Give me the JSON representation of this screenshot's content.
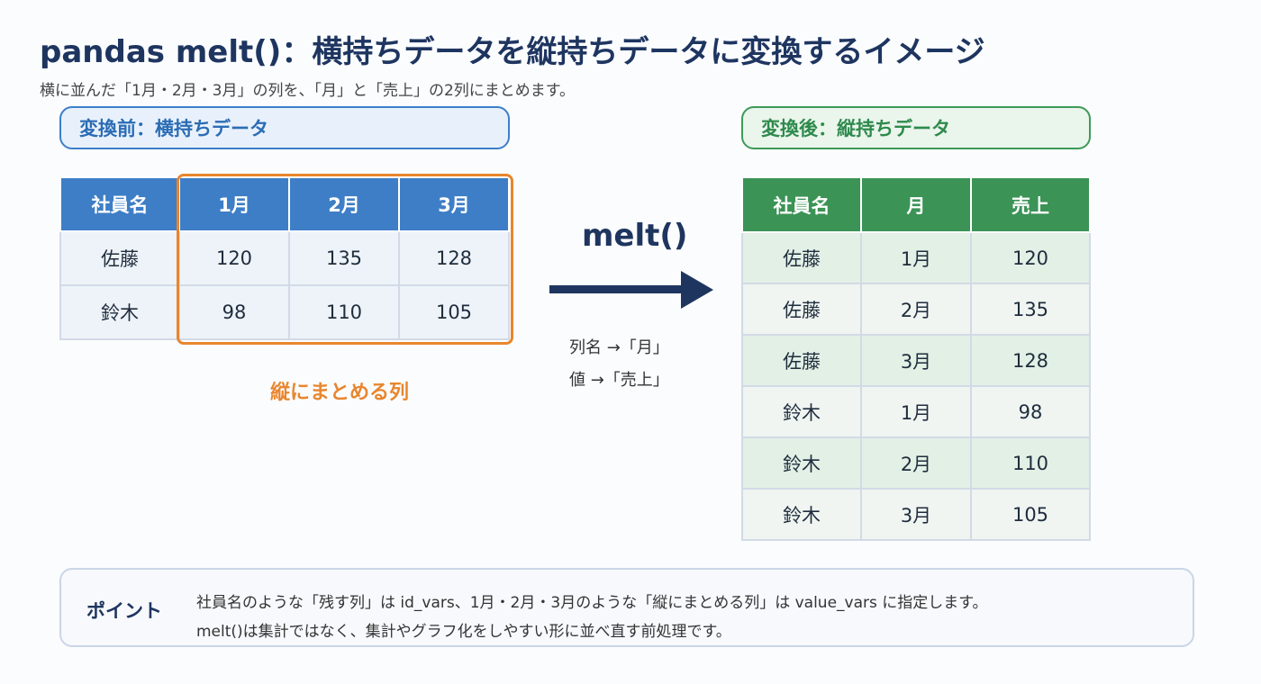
{
  "header": {
    "title": "pandas melt()：横持ちデータを縦持ちデータに変換するイメージ",
    "subtitle": "横に並んだ「1月・2月・3月」の列を、「月」と「売上」の2列にまとめます。"
  },
  "before": {
    "label": "変換前：横持ちデータ",
    "headers": [
      "社員名",
      "1月",
      "2月",
      "3月"
    ],
    "rows": [
      [
        "佐藤",
        "120",
        "135",
        "128"
      ],
      [
        "鈴木",
        "98",
        "110",
        "105"
      ]
    ],
    "highlight_label": "縦にまとめる列"
  },
  "transform": {
    "function_label": "melt()",
    "note_column": "列名 →「月」",
    "note_value": "値 →「売上」"
  },
  "after": {
    "label": "変換後：縦持ちデータ",
    "headers": [
      "社員名",
      "月",
      "売上"
    ],
    "rows": [
      [
        "佐藤",
        "1月",
        "120"
      ],
      [
        "佐藤",
        "2月",
        "135"
      ],
      [
        "佐藤",
        "3月",
        "128"
      ],
      [
        "鈴木",
        "1月",
        "98"
      ],
      [
        "鈴木",
        "2月",
        "110"
      ],
      [
        "鈴木",
        "3月",
        "105"
      ]
    ]
  },
  "point": {
    "title": "ポイント",
    "line1": "社員名のような「残す列」は id_vars、1月・2月・3月のような「縦にまとめる列」は value_vars に指定します。",
    "line2": "melt()は集計ではなく、集計やグラフ化をしやすい形に並べ直す前処理です。"
  },
  "colors": {
    "title": "#1e3560",
    "before_accent": "#3e7ec6",
    "after_accent": "#3b9356",
    "highlight": "#e8862e"
  }
}
